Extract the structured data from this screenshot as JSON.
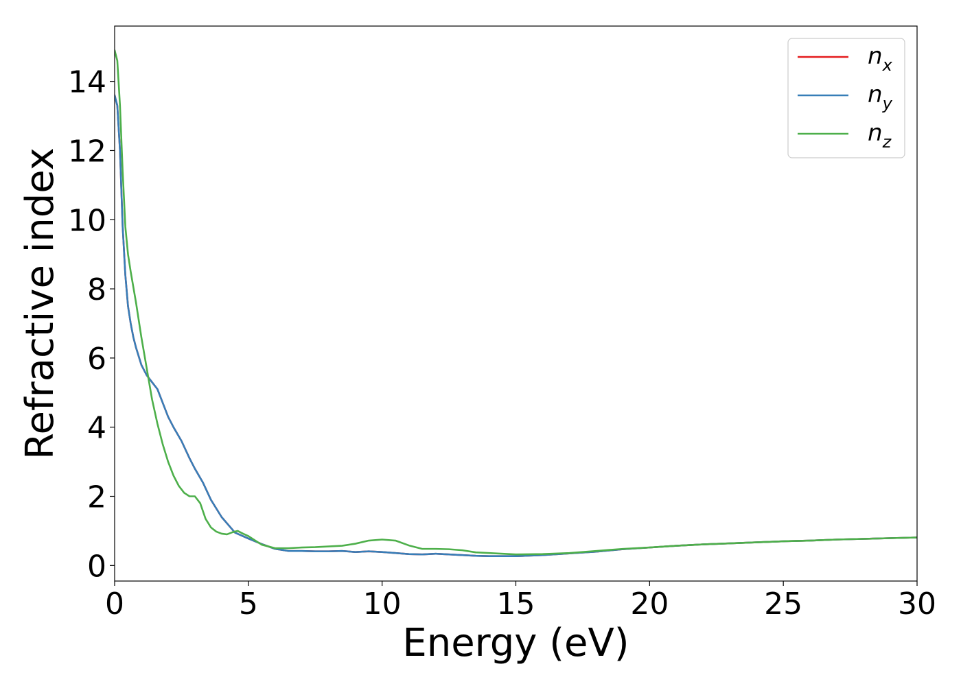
{
  "chart_data": {
    "type": "line",
    "title": "",
    "xlabel": "Energy (eV)",
    "ylabel": "Refractive index",
    "xlim": [
      0,
      30
    ],
    "ylim": [
      -0.45,
      15.6
    ],
    "xticks": [
      0,
      5,
      10,
      15,
      20,
      25,
      30
    ],
    "xtick_labels": [
      "0",
      "5",
      "10",
      "15",
      "20",
      "25",
      "30"
    ],
    "yticks": [
      0,
      2,
      4,
      6,
      8,
      10,
      12,
      14
    ],
    "ytick_labels": [
      "0",
      "2",
      "4",
      "6",
      "8",
      "10",
      "12",
      "14"
    ],
    "grid": false,
    "legend_position": "top-right",
    "series": [
      {
        "name": "n_x",
        "label_base": "n",
        "label_sub": "x",
        "color": "#e41a1c",
        "x": [
          0,
          0.1,
          0.2,
          0.3,
          0.4,
          0.5,
          0.6,
          0.7,
          0.8,
          1.0,
          1.2,
          1.4,
          1.6,
          1.8,
          2.0,
          2.2,
          2.5,
          2.8,
          3.0,
          3.3,
          3.6,
          4.0,
          4.5,
          5.0,
          5.5,
          6.0,
          6.5,
          7.0,
          7.5,
          8.0,
          8.5,
          9.0,
          9.5,
          10.0,
          10.5,
          11.0,
          11.5,
          12.0,
          12.5,
          13.0,
          13.5,
          14.0,
          14.5,
          15.0,
          16.0,
          17.0,
          18.0,
          19.0,
          20.0,
          21.0,
          22.0,
          23.0,
          24.0,
          25.0,
          26.0,
          27.0,
          28.0,
          29.0,
          30.0
        ],
        "y": [
          13.6,
          13.3,
          12.0,
          9.8,
          8.4,
          7.5,
          7.0,
          6.6,
          6.3,
          5.8,
          5.5,
          5.3,
          5.1,
          4.7,
          4.3,
          4.0,
          3.6,
          3.1,
          2.8,
          2.4,
          1.9,
          1.4,
          0.95,
          0.78,
          0.62,
          0.48,
          0.42,
          0.42,
          0.41,
          0.41,
          0.42,
          0.39,
          0.41,
          0.39,
          0.36,
          0.33,
          0.32,
          0.34,
          0.32,
          0.3,
          0.28,
          0.27,
          0.27,
          0.27,
          0.3,
          0.35,
          0.4,
          0.47,
          0.52,
          0.57,
          0.61,
          0.64,
          0.67,
          0.7,
          0.72,
          0.75,
          0.77,
          0.79,
          0.81
        ]
      },
      {
        "name": "n_y",
        "label_base": "n",
        "label_sub": "y",
        "color": "#377eb8",
        "x": [
          0,
          0.1,
          0.2,
          0.3,
          0.4,
          0.5,
          0.6,
          0.7,
          0.8,
          1.0,
          1.2,
          1.4,
          1.6,
          1.8,
          2.0,
          2.2,
          2.5,
          2.8,
          3.0,
          3.3,
          3.6,
          4.0,
          4.5,
          5.0,
          5.5,
          6.0,
          6.5,
          7.0,
          7.5,
          8.0,
          8.5,
          9.0,
          9.5,
          10.0,
          10.5,
          11.0,
          11.5,
          12.0,
          12.5,
          13.0,
          13.5,
          14.0,
          14.5,
          15.0,
          16.0,
          17.0,
          18.0,
          19.0,
          20.0,
          21.0,
          22.0,
          23.0,
          24.0,
          25.0,
          26.0,
          27.0,
          28.0,
          29.0,
          30.0
        ],
        "y": [
          13.6,
          13.3,
          12.0,
          9.8,
          8.4,
          7.5,
          7.0,
          6.6,
          6.3,
          5.8,
          5.5,
          5.3,
          5.1,
          4.7,
          4.3,
          4.0,
          3.6,
          3.1,
          2.8,
          2.4,
          1.9,
          1.4,
          0.95,
          0.78,
          0.62,
          0.48,
          0.42,
          0.42,
          0.41,
          0.41,
          0.42,
          0.39,
          0.41,
          0.39,
          0.36,
          0.33,
          0.32,
          0.34,
          0.32,
          0.3,
          0.28,
          0.27,
          0.27,
          0.27,
          0.3,
          0.35,
          0.4,
          0.47,
          0.52,
          0.57,
          0.61,
          0.64,
          0.67,
          0.7,
          0.72,
          0.75,
          0.77,
          0.79,
          0.81
        ]
      },
      {
        "name": "n_z",
        "label_base": "n",
        "label_sub": "z",
        "color": "#4daf4a",
        "x": [
          0,
          0.1,
          0.2,
          0.3,
          0.4,
          0.5,
          0.6,
          0.8,
          1.0,
          1.2,
          1.4,
          1.6,
          1.8,
          2.0,
          2.2,
          2.4,
          2.6,
          2.8,
          3.0,
          3.2,
          3.4,
          3.6,
          3.8,
          4.0,
          4.2,
          4.4,
          4.6,
          4.8,
          5.0,
          5.5,
          6.0,
          6.5,
          7.0,
          7.5,
          8.0,
          8.5,
          9.0,
          9.5,
          10.0,
          10.5,
          11.0,
          11.5,
          12.0,
          12.5,
          13.0,
          13.5,
          14.0,
          14.5,
          15.0,
          16.0,
          17.0,
          18.0,
          19.0,
          20.0,
          21.0,
          22.0,
          23.0,
          24.0,
          25.0,
          26.0,
          27.0,
          28.0,
          29.0,
          30.0
        ],
        "y": [
          14.9,
          14.6,
          13.3,
          11.4,
          9.8,
          9.0,
          8.5,
          7.6,
          6.6,
          5.7,
          4.8,
          4.1,
          3.5,
          3.0,
          2.6,
          2.3,
          2.1,
          2.0,
          2.0,
          1.8,
          1.35,
          1.1,
          0.98,
          0.92,
          0.9,
          0.96,
          1.0,
          0.92,
          0.85,
          0.6,
          0.5,
          0.5,
          0.52,
          0.53,
          0.55,
          0.57,
          0.63,
          0.72,
          0.75,
          0.72,
          0.58,
          0.48,
          0.48,
          0.47,
          0.44,
          0.38,
          0.36,
          0.34,
          0.32,
          0.33,
          0.36,
          0.42,
          0.48,
          0.52,
          0.57,
          0.61,
          0.64,
          0.67,
          0.7,
          0.72,
          0.75,
          0.77,
          0.79,
          0.81
        ]
      }
    ]
  }
}
